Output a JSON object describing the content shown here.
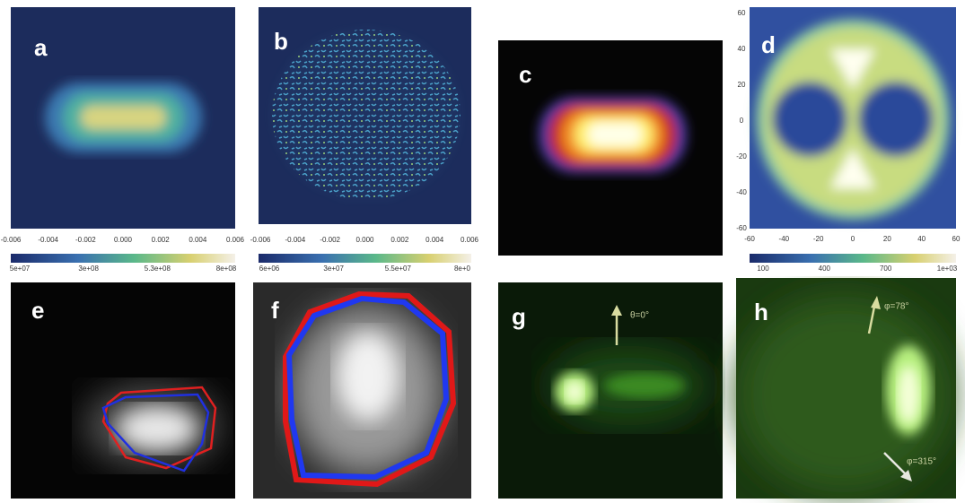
{
  "panels": [
    {
      "label": "a",
      "x_ticks": [
        "-0.006",
        "-0.004",
        "-0.002",
        "0.000",
        "0.002",
        "0.004",
        "0.006"
      ],
      "colorbar_labels": [
        "5e+07",
        "3e+08",
        "5.3e+08",
        "8e+08"
      ]
    },
    {
      "label": "b",
      "x_ticks": [
        "-0.006",
        "-0.004",
        "-0.002",
        "0.000",
        "0.002",
        "0.004",
        "0.006"
      ],
      "colorbar_labels": [
        "6e+06",
        "3e+07",
        "5.5e+07",
        "8e+0"
      ]
    },
    {
      "label": "c"
    },
    {
      "label": "d",
      "x_ticks": [
        "-60",
        "-40",
        "-20",
        "0",
        "20",
        "40",
        "60"
      ],
      "y_ticks": [
        "60",
        "40",
        "20",
        "0",
        "-20",
        "-40",
        "-60"
      ],
      "colorbar_labels": [
        "100",
        "400",
        "700",
        "1e+03"
      ]
    },
    {
      "label": "e"
    },
    {
      "label": "f"
    },
    {
      "label": "g",
      "annotations": [
        "θ=0°"
      ]
    },
    {
      "label": "h",
      "annotations": [
        "φ=78°",
        "φ=315°"
      ]
    }
  ]
}
